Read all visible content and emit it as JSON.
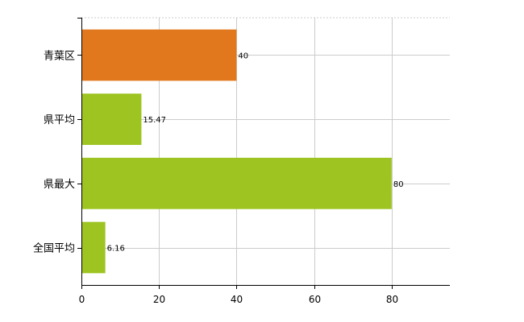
{
  "chart_data": {
    "type": "bar",
    "orientation": "horizontal",
    "categories": [
      "青葉区",
      "県平均",
      "県最大",
      "全国平均"
    ],
    "values": [
      40,
      15.47,
      80,
      6.16
    ],
    "value_labels": [
      "40",
      "15.47",
      "80",
      "6.16"
    ],
    "bar_colors": [
      "#e2781d",
      "#9dc421",
      "#9dc421",
      "#9dc421"
    ],
    "xlim": [
      0,
      95
    ],
    "x_ticks": [
      0,
      20,
      40,
      60,
      80
    ],
    "x_tick_labels": [
      "0",
      "20",
      "40",
      "60",
      "80"
    ],
    "grid": true,
    "grid_style": "dashed",
    "legend": "none"
  }
}
